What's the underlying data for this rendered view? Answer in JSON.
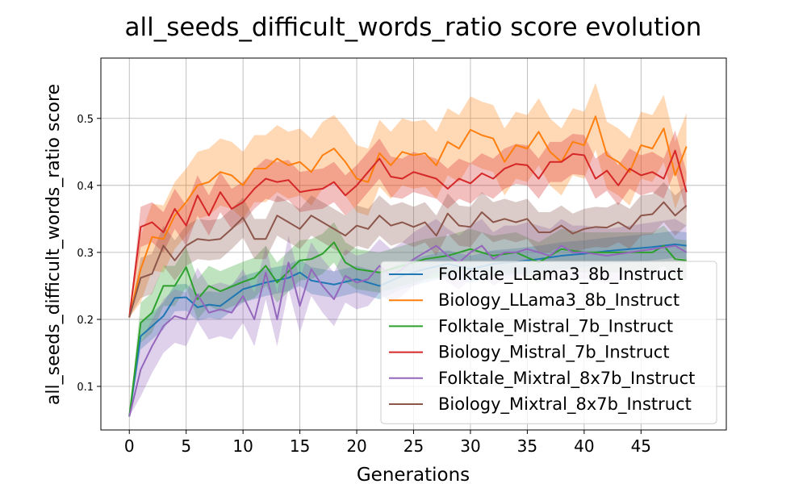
{
  "chart_data": {
    "type": "line",
    "title": "all_seeds_difficult_words_ratio score evolution",
    "xlabel": "Generations",
    "ylabel": "all_seeds_difficult_words_ratio score",
    "xlim": [
      -2.5,
      52.5
    ],
    "ylim": [
      0.035,
      0.59
    ],
    "x_ticks": [
      0,
      5,
      10,
      15,
      20,
      25,
      30,
      35,
      40,
      45
    ],
    "y_ticks": [
      0.1,
      0.2,
      0.3,
      0.4,
      0.5
    ],
    "grid": true,
    "legend_position": "lower-right",
    "series": [
      {
        "name": "Folktale_LLama3_8b_Instruct",
        "color": "#1f77b4",
        "x": [
          0,
          1,
          2,
          3,
          4,
          5,
          6,
          7,
          8,
          10,
          12,
          14,
          15,
          16,
          18,
          20,
          22,
          24,
          26,
          28,
          30,
          32,
          34,
          36,
          38,
          40,
          42,
          44,
          46,
          48,
          49
        ],
        "values": [
          0.055,
          0.175,
          0.19,
          0.205,
          0.232,
          0.233,
          0.218,
          0.222,
          0.22,
          0.245,
          0.255,
          0.262,
          0.27,
          0.258,
          0.252,
          0.26,
          0.25,
          0.265,
          0.275,
          0.283,
          0.275,
          0.283,
          0.286,
          0.29,
          0.295,
          0.298,
          0.302,
          0.305,
          0.308,
          0.312,
          0.31
        ],
        "band_halfwidth": 0.02
      },
      {
        "name": "Biology_LLama3_8b_Instruct",
        "color": "#ff7f0e",
        "x": [
          0,
          1,
          2,
          3,
          4,
          5,
          6,
          7,
          8,
          9,
          10,
          11,
          12,
          13,
          14,
          15,
          16,
          17,
          18,
          19,
          20,
          21,
          22,
          23,
          24,
          25,
          26,
          27,
          28,
          29,
          30,
          31,
          32,
          33,
          34,
          35,
          36,
          37,
          38,
          39,
          40,
          41,
          42,
          43,
          44,
          45,
          46,
          47,
          48,
          49
        ],
        "values": [
          0.203,
          0.275,
          0.323,
          0.32,
          0.355,
          0.375,
          0.4,
          0.405,
          0.42,
          0.415,
          0.4,
          0.425,
          0.425,
          0.44,
          0.43,
          0.435,
          0.42,
          0.445,
          0.455,
          0.435,
          0.41,
          0.405,
          0.448,
          0.43,
          0.45,
          0.445,
          0.448,
          0.43,
          0.465,
          0.455,
          0.483,
          0.475,
          0.47,
          0.435,
          0.46,
          0.455,
          0.48,
          0.45,
          0.435,
          0.465,
          0.46,
          0.503,
          0.445,
          0.435,
          0.42,
          0.46,
          0.455,
          0.485,
          0.415,
          0.458
        ],
        "band_halfwidth": 0.05
      },
      {
        "name": "Folktale_Mistral_7b_Instruct",
        "color": "#2ca02c",
        "x": [
          0,
          1,
          2,
          3,
          4,
          5,
          6,
          7,
          8,
          10,
          11,
          12,
          13,
          15,
          16,
          17,
          18,
          19,
          20,
          22,
          24,
          26,
          28,
          30,
          32,
          34,
          36,
          38,
          40,
          42,
          44,
          46,
          47,
          48,
          49
        ],
        "values": [
          0.055,
          0.195,
          0.21,
          0.25,
          0.25,
          0.278,
          0.23,
          0.25,
          0.242,
          0.256,
          0.262,
          0.28,
          0.255,
          0.288,
          0.29,
          0.298,
          0.315,
          0.285,
          0.275,
          0.27,
          0.28,
          0.29,
          0.295,
          0.305,
          0.295,
          0.3,
          0.285,
          0.305,
          0.3,
          0.3,
          0.3,
          0.3,
          0.31,
          0.29,
          0.288
        ],
        "band_halfwidth": 0.03
      },
      {
        "name": "Biology_Mistral_7b_Instruct",
        "color": "#d62728",
        "x": [
          0,
          1,
          2,
          3,
          4,
          5,
          6,
          7,
          8,
          9,
          10,
          11,
          12,
          13,
          14,
          15,
          16,
          17,
          18,
          19,
          20,
          21,
          22,
          23,
          24,
          25,
          26,
          27,
          28,
          29,
          30,
          31,
          32,
          33,
          34,
          35,
          36,
          37,
          38,
          39,
          40,
          41,
          42,
          43,
          44,
          45,
          46,
          47,
          48,
          49
        ],
        "values": [
          0.203,
          0.338,
          0.345,
          0.33,
          0.365,
          0.34,
          0.385,
          0.355,
          0.39,
          0.365,
          0.375,
          0.395,
          0.41,
          0.405,
          0.408,
          0.39,
          0.393,
          0.395,
          0.405,
          0.385,
          0.4,
          0.42,
          0.44,
          0.413,
          0.41,
          0.42,
          0.415,
          0.41,
          0.395,
          0.41,
          0.403,
          0.418,
          0.41,
          0.425,
          0.432,
          0.43,
          0.41,
          0.435,
          0.435,
          0.447,
          0.445,
          0.41,
          0.422,
          0.4,
          0.425,
          0.415,
          0.42,
          0.41,
          0.452,
          0.39
        ],
        "band_halfwidth": 0.03
      },
      {
        "name": "Folktale_Mixtral_8x7b_Instruct",
        "color": "#9467bd",
        "x": [
          0,
          1,
          2,
          3,
          4,
          5,
          6,
          7,
          8,
          9,
          10,
          11,
          12,
          13,
          14,
          15,
          16,
          17,
          18,
          19,
          20,
          21,
          22,
          23,
          24,
          25,
          26,
          27,
          28,
          29,
          30,
          31,
          32,
          33,
          34,
          35,
          36,
          37,
          38,
          39,
          40,
          42,
          44,
          46,
          48,
          49
        ],
        "values": [
          0.055,
          0.125,
          0.16,
          0.19,
          0.205,
          0.2,
          0.237,
          0.21,
          0.215,
          0.21,
          0.235,
          0.2,
          0.27,
          0.2,
          0.285,
          0.22,
          0.275,
          0.25,
          0.23,
          0.265,
          0.255,
          0.26,
          0.28,
          0.265,
          0.275,
          0.29,
          0.3,
          0.31,
          0.295,
          0.285,
          0.3,
          0.31,
          0.29,
          0.3,
          0.3,
          0.305,
          0.3,
          0.295,
          0.31,
          0.3,
          0.3,
          0.295,
          0.3,
          0.305,
          0.31,
          0.3
        ],
        "band_halfwidth": 0.04
      },
      {
        "name": "Biology_Mixtral_8x7b_Instruct",
        "color": "#8c564b",
        "x": [
          0,
          1,
          2,
          3,
          4,
          5,
          6,
          7,
          8,
          9,
          10,
          11,
          12,
          13,
          14,
          15,
          16,
          17,
          18,
          19,
          20,
          21,
          22,
          23,
          24,
          25,
          26,
          27,
          28,
          29,
          30,
          31,
          32,
          33,
          34,
          35,
          36,
          37,
          38,
          39,
          40,
          41,
          42,
          43,
          44,
          45,
          46,
          47,
          48,
          49
        ],
        "values": [
          0.203,
          0.262,
          0.268,
          0.31,
          0.288,
          0.31,
          0.32,
          0.318,
          0.32,
          0.335,
          0.352,
          0.32,
          0.32,
          0.355,
          0.345,
          0.335,
          0.355,
          0.345,
          0.335,
          0.325,
          0.34,
          0.335,
          0.355,
          0.34,
          0.345,
          0.338,
          0.345,
          0.325,
          0.358,
          0.34,
          0.338,
          0.36,
          0.345,
          0.35,
          0.345,
          0.35,
          0.33,
          0.33,
          0.34,
          0.328,
          0.335,
          0.338,
          0.337,
          0.345,
          0.335,
          0.355,
          0.357,
          0.375,
          0.355,
          0.37
        ],
        "band_halfwidth": 0.03
      }
    ]
  }
}
